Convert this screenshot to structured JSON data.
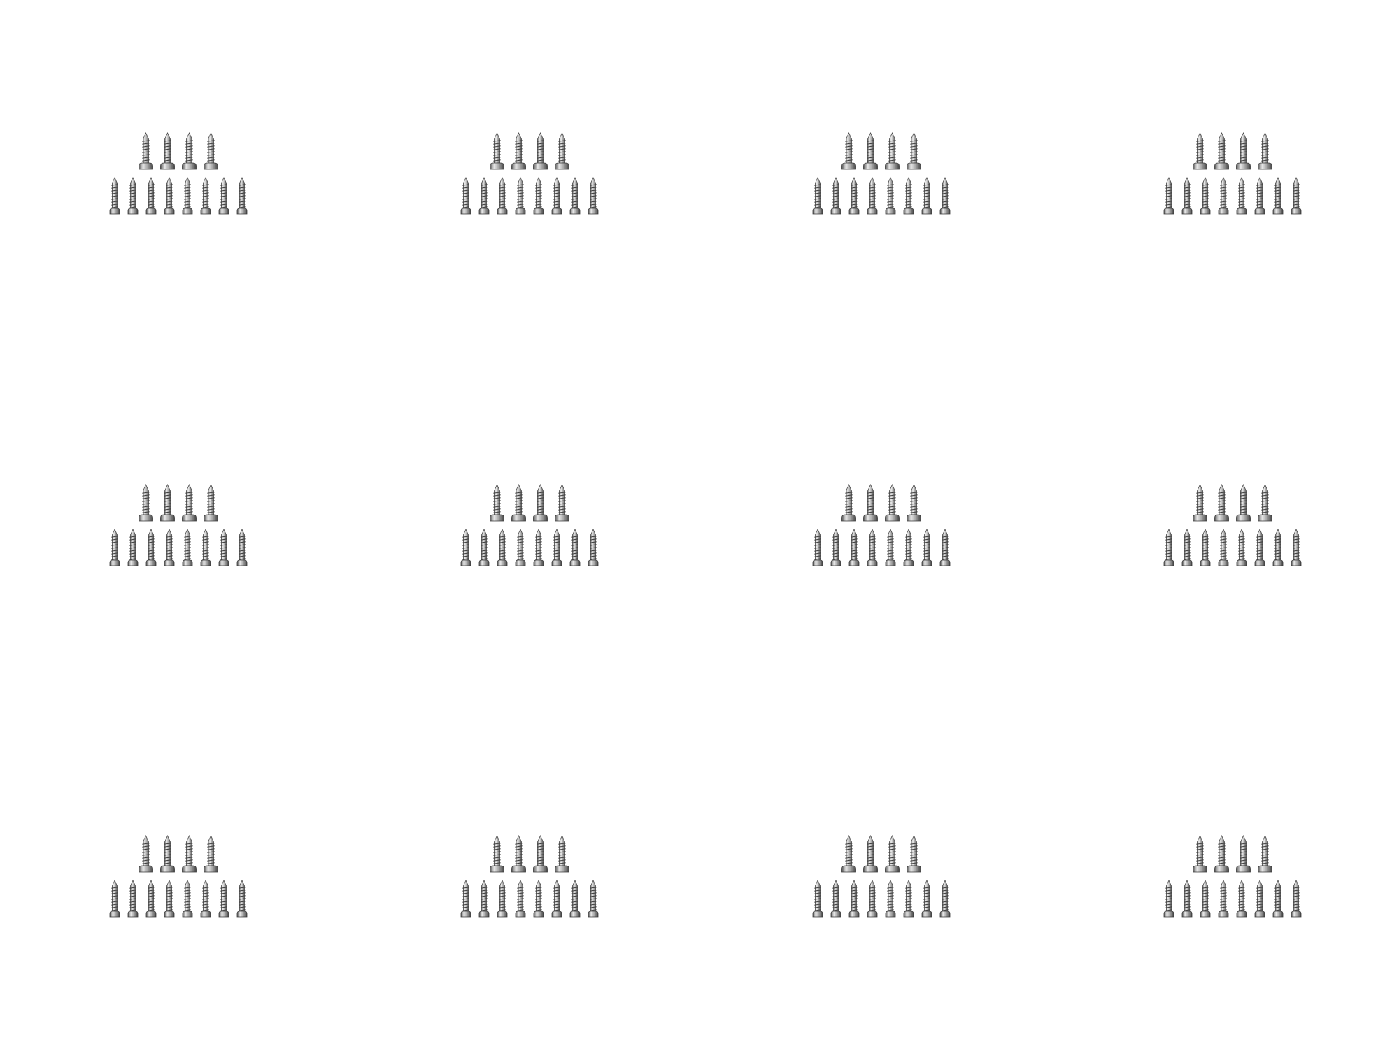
{
  "image": {
    "background": "#ffffff",
    "screw_color_light": "#f2f2f2",
    "screw_color_mid": "#b8b8b8",
    "screw_color_dark": "#5a5a5a",
    "grid": {
      "rows": 3,
      "columns": 4
    },
    "group": {
      "top_row_count": 4,
      "bottom_row_count": 8,
      "description_icon": "screw-icon"
    }
  }
}
